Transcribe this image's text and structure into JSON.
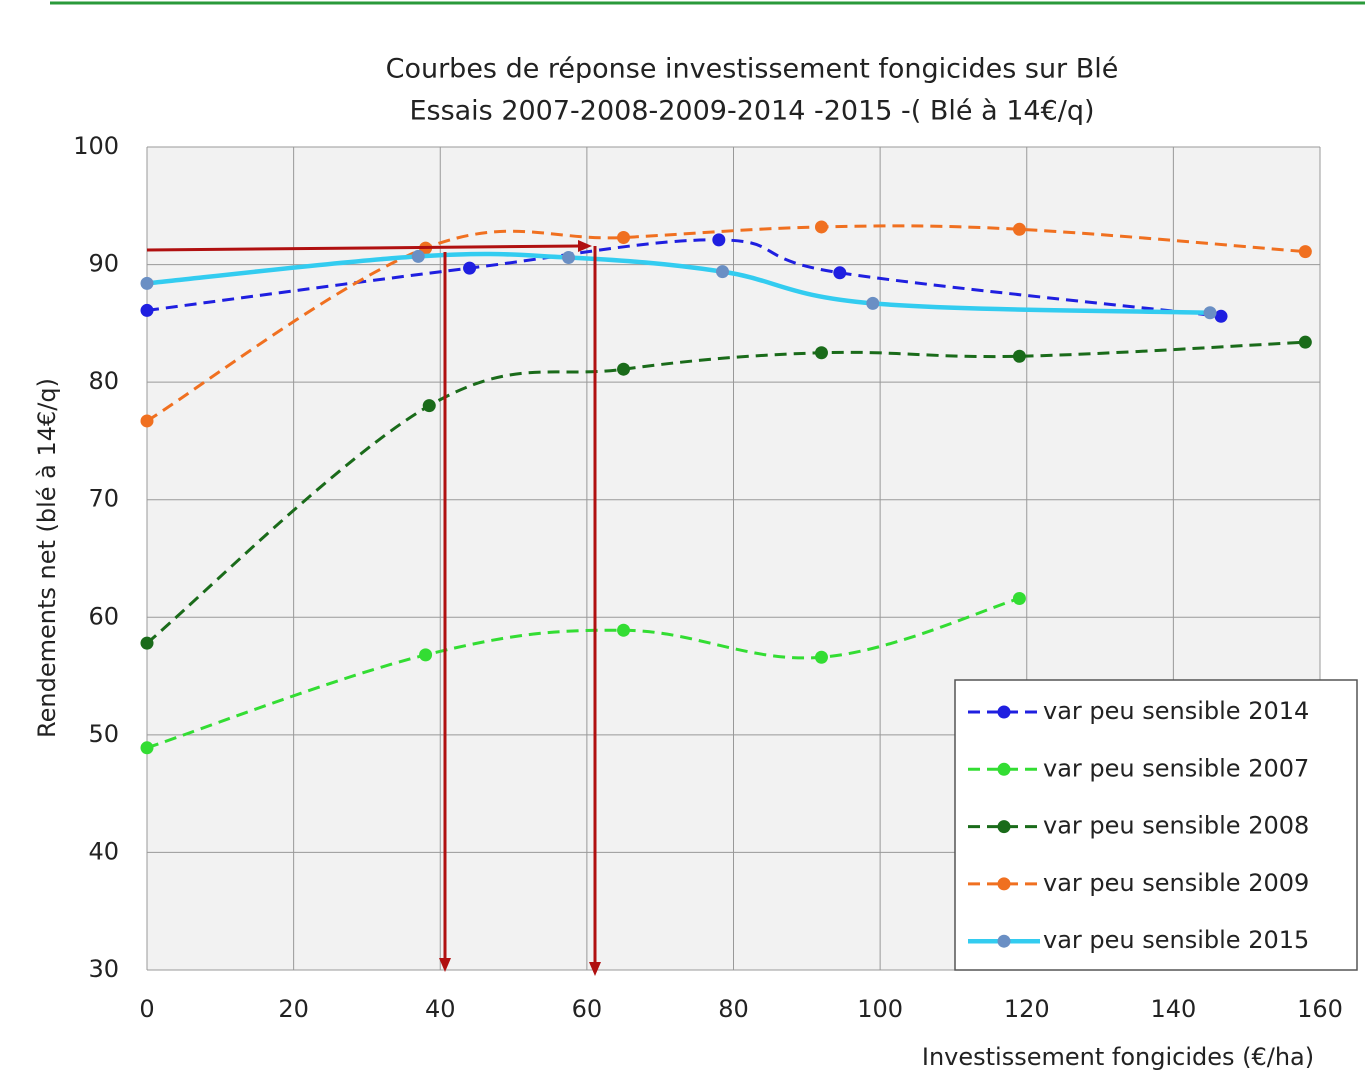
{
  "chart_data": {
    "type": "line",
    "title": "Courbes de réponse investissement fongicides sur Blé",
    "subtitle": "Essais 2007-2008-2009-2014 -2015 -( Blé à 14€/q)",
    "x_label": "Investissement fongicides (€/ha)",
    "y_label": "Rendements net (blé à 14€/q)",
    "xlim": [
      0,
      160
    ],
    "xticks": [
      0,
      20,
      40,
      60,
      80,
      100,
      120,
      140,
      160
    ],
    "ylim": [
      30,
      100
    ],
    "yticks": [
      30,
      40,
      50,
      60,
      70,
      80,
      90,
      100
    ],
    "grid": true,
    "legend": "lower right",
    "series": [
      {
        "name": "var peu sensible 2014",
        "color": "#1f1fe0",
        "marker_color": "#1f1fe0",
        "dash": true,
        "x": [
          0,
          44,
          78,
          94.5,
          146.5
        ],
        "values": [
          86.1,
          89.7,
          92.1,
          89.3,
          85.6
        ]
      },
      {
        "name": "var peu sensible 2007",
        "color": "#33dd33",
        "marker_color": "#33dd33",
        "dash": true,
        "x": [
          0,
          38,
          65,
          92,
          119
        ],
        "values": [
          48.9,
          56.8,
          58.9,
          56.6,
          61.6
        ]
      },
      {
        "name": "var peu sensible 2008",
        "color": "#1a6b1a",
        "marker_color": "#1a6b1a",
        "dash": true,
        "x": [
          0,
          38.5,
          65,
          92,
          119,
          158
        ],
        "values": [
          57.8,
          78,
          81.1,
          82.5,
          82.2,
          83.4
        ]
      },
      {
        "name": "var peu sensible 2009",
        "color": "#f07020",
        "marker_color": "#f07020",
        "dash": true,
        "x": [
          0,
          38,
          65,
          92,
          119,
          158
        ],
        "values": [
          76.7,
          91.4,
          92.3,
          93.2,
          93,
          91.1
        ]
      },
      {
        "name": "var peu sensible 2015",
        "color": "#33ccf0",
        "marker_color": "#6a8fc4",
        "dash": false,
        "x": [
          0,
          37,
          57.5,
          78.5,
          99,
          145
        ],
        "values": [
          88.4,
          90.7,
          90.6,
          89.4,
          86.7,
          85.9
        ]
      }
    ]
  }
}
